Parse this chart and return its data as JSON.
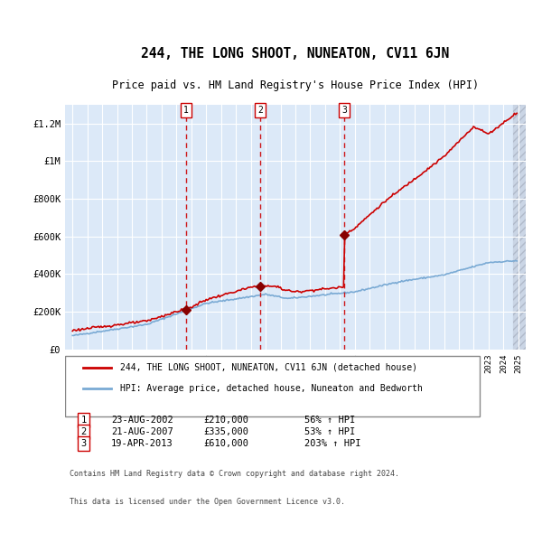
{
  "title": "244, THE LONG SHOOT, NUNEATON, CV11 6JN",
  "subtitle": "Price paid vs. HM Land Registry's House Price Index (HPI)",
  "legend_line1": "244, THE LONG SHOOT, NUNEATON, CV11 6JN (detached house)",
  "legend_line2": "HPI: Average price, detached house, Nuneaton and Bedworth",
  "footer1": "Contains HM Land Registry data © Crown copyright and database right 2024.",
  "footer2": "This data is licensed under the Open Government Licence v3.0.",
  "transactions": [
    {
      "num": 1,
      "date": "23-AUG-2002",
      "date_x": 2002.65,
      "price": 210000,
      "pct": "56%",
      "dir": "↑"
    },
    {
      "num": 2,
      "date": "21-AUG-2007",
      "date_x": 2007.65,
      "price": 335000,
      "pct": "53%",
      "dir": "↑"
    },
    {
      "num": 3,
      "date": "19-APR-2013",
      "date_x": 2013.3,
      "price": 610000,
      "pct": "203%",
      "dir": "↑"
    }
  ],
  "ylim": [
    0,
    1300000
  ],
  "xlim": [
    1994.5,
    2025.5
  ],
  "yticks": [
    0,
    200000,
    400000,
    600000,
    800000,
    1000000,
    1200000
  ],
  "ytick_labels": [
    "£0",
    "£200K",
    "£400K",
    "£600K",
    "£800K",
    "£1M",
    "£1.2M"
  ],
  "bg_color": "#dce9f8",
  "grid_color": "#ffffff",
  "hpi_line_color": "#7aaad4",
  "price_line_color": "#cc0000",
  "marker_color": "#880000",
  "dashed_line_color": "#cc0000",
  "hatch_color": "#c0c8d8"
}
